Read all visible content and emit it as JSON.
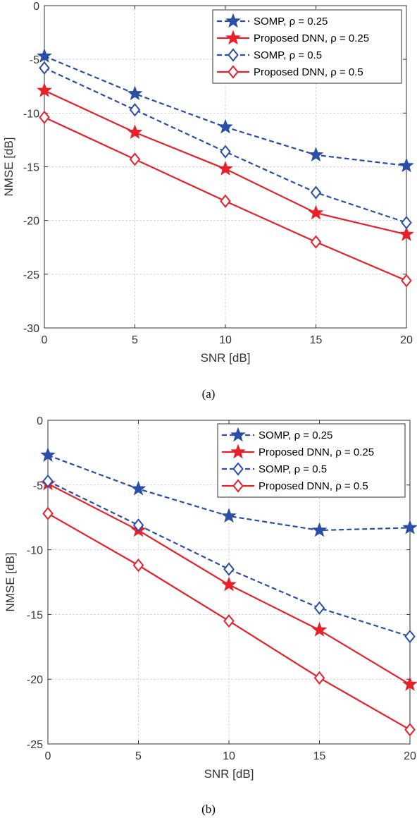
{
  "chart_data": [
    {
      "type": "line",
      "caption": "(a)",
      "xlabel": "SNR [dB]",
      "ylabel": "NMSE [dB]",
      "xlim": [
        0,
        20
      ],
      "ylim": [
        -30,
        0
      ],
      "xticks": [
        0,
        5,
        10,
        15,
        20
      ],
      "yticks": [
        -30,
        -25,
        -20,
        -15,
        -10,
        -5,
        0
      ],
      "x": [
        0,
        5,
        10,
        15,
        20
      ],
      "grid": true,
      "legend_position": "top-right",
      "series": [
        {
          "name": "SOMP,  ρ = 0.25",
          "color": "#2b4ea6",
          "dash": true,
          "marker": "star",
          "values": [
            -4.7,
            -8.2,
            -11.3,
            -13.9,
            -14.9
          ]
        },
        {
          "name": "Proposed DNN,  ρ = 0.25",
          "color": "#e8202a",
          "dash": false,
          "marker": "star",
          "values": [
            -7.9,
            -11.8,
            -15.2,
            -19.3,
            -21.3
          ]
        },
        {
          "name": "SOMP,  ρ = 0.5",
          "color": "#2b4ea6",
          "dash": true,
          "marker": "diamond",
          "values": [
            -5.8,
            -9.7,
            -13.6,
            -17.4,
            -20.2
          ]
        },
        {
          "name": "Proposed DNN,  ρ = 0.5",
          "color": "#e8202a",
          "dash": false,
          "marker": "diamond",
          "values": [
            -10.4,
            -14.3,
            -18.2,
            -22.0,
            -25.6
          ]
        }
      ]
    },
    {
      "type": "line",
      "caption": "(b)",
      "xlabel": "SNR [dB]",
      "ylabel": "NMSE [dB]",
      "xlim": [
        0,
        20
      ],
      "ylim": [
        -25,
        0
      ],
      "xticks": [
        0,
        5,
        10,
        15,
        20
      ],
      "yticks": [
        -25,
        -20,
        -15,
        -10,
        -5,
        0
      ],
      "x": [
        0,
        5,
        10,
        15,
        20
      ],
      "grid": true,
      "legend_position": "top-right",
      "series": [
        {
          "name": "SOMP,  ρ = 0.25",
          "color": "#2b4ea6",
          "dash": true,
          "marker": "star",
          "values": [
            -2.7,
            -5.3,
            -7.4,
            -8.5,
            -8.3
          ]
        },
        {
          "name": "Proposed DNN,  ρ = 0.25",
          "color": "#e8202a",
          "dash": false,
          "marker": "star",
          "values": [
            -4.9,
            -8.5,
            -12.7,
            -16.2,
            -20.4
          ]
        },
        {
          "name": "SOMP,  ρ = 0.5",
          "color": "#2b4ea6",
          "dash": true,
          "marker": "diamond",
          "values": [
            -4.7,
            -8.1,
            -11.5,
            -14.5,
            -16.7
          ]
        },
        {
          "name": "Proposed DNN,  ρ = 0.5",
          "color": "#e8202a",
          "dash": false,
          "marker": "diamond",
          "values": [
            -7.2,
            -11.2,
            -15.5,
            -19.9,
            -23.9
          ]
        }
      ]
    }
  ]
}
